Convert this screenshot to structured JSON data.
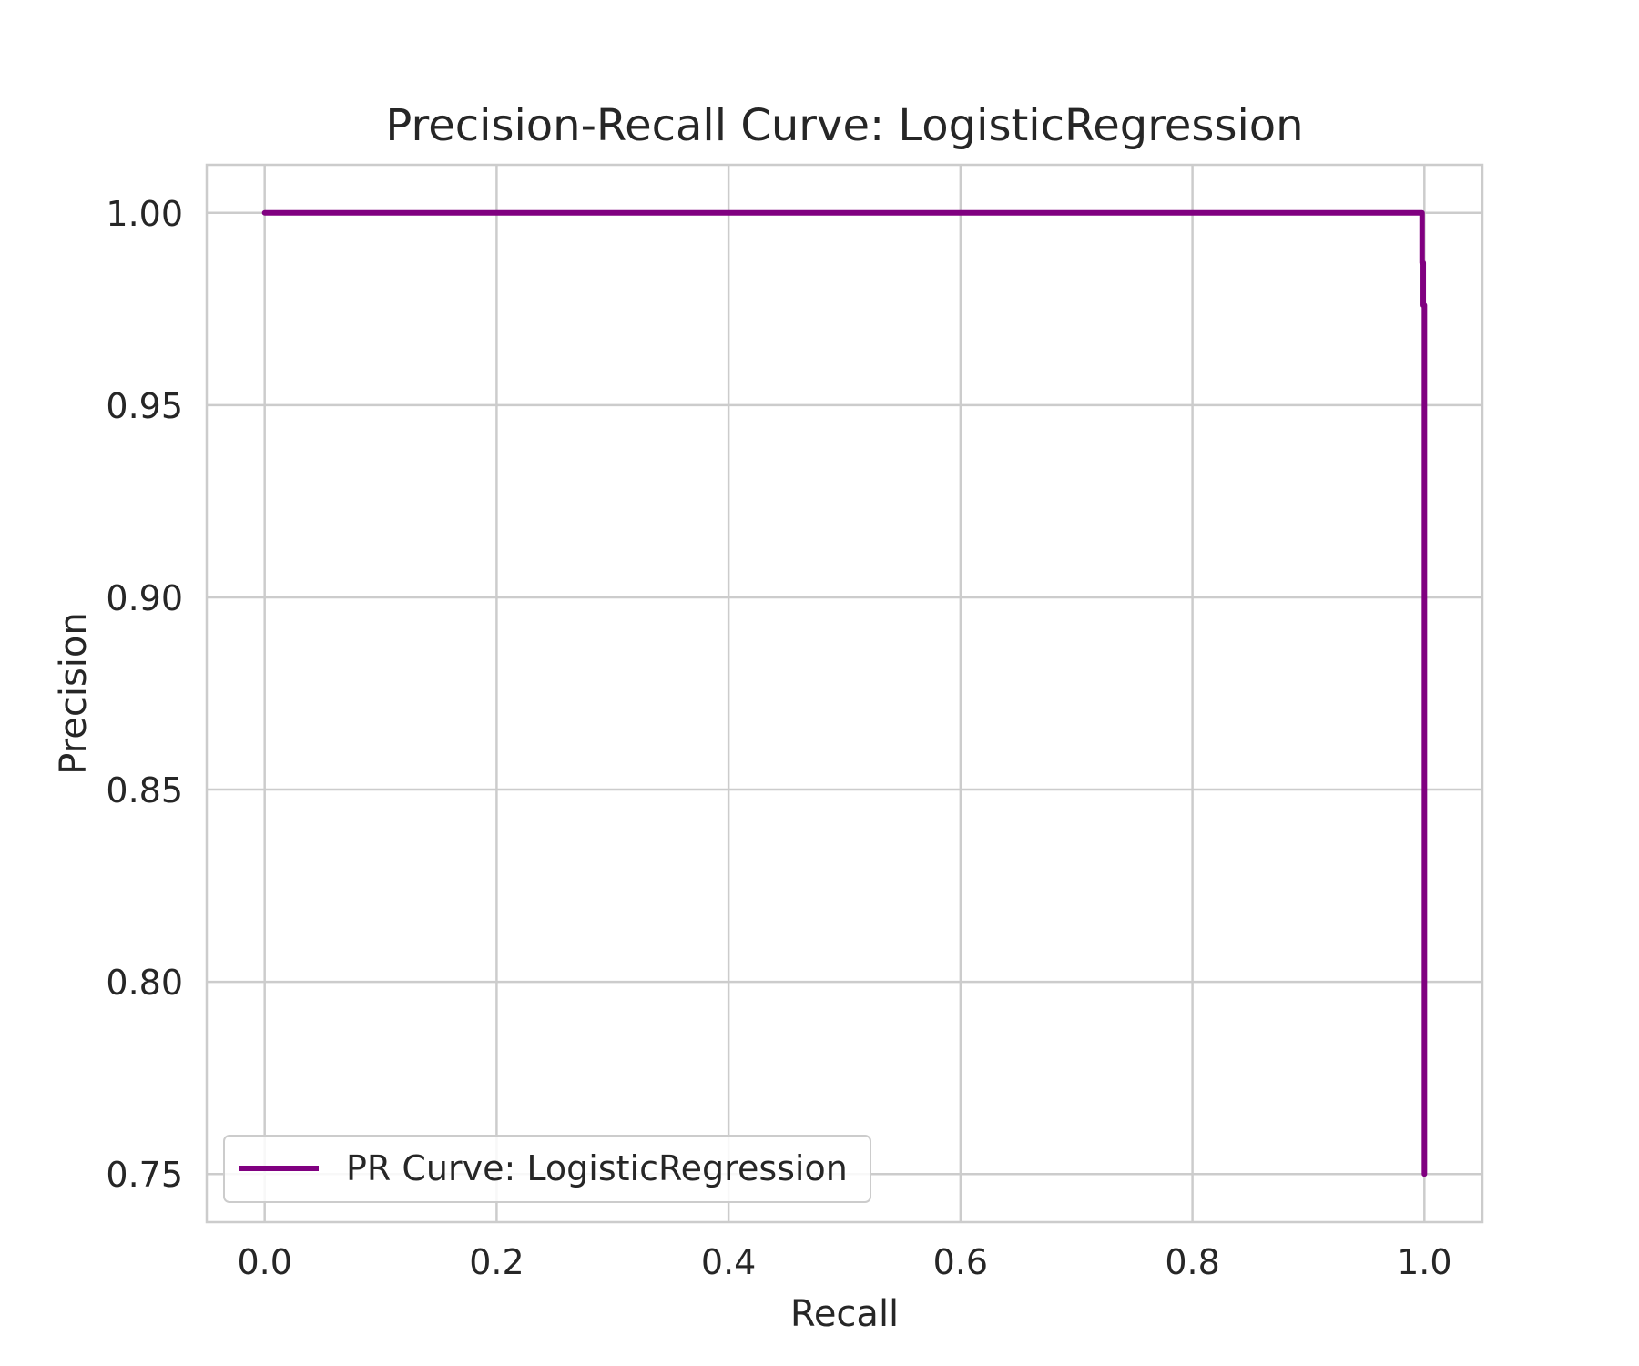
{
  "chart_data": {
    "type": "line",
    "title": "Precision-Recall Curve: LogisticRegression",
    "xlabel": "Recall",
    "ylabel": "Precision",
    "xlim": [
      -0.05,
      1.05
    ],
    "ylim": [
      0.7375,
      1.0125
    ],
    "xticks": [
      0.0,
      0.2,
      0.4,
      0.6,
      0.8,
      1.0
    ],
    "xtick_labels": [
      "0.0",
      "0.2",
      "0.4",
      "0.6",
      "0.8",
      "1.0"
    ],
    "yticks": [
      0.75,
      0.8,
      0.85,
      0.9,
      0.95,
      1.0
    ],
    "ytick_labels": [
      "0.75",
      "0.80",
      "0.85",
      "0.90",
      "0.95",
      "1.00"
    ],
    "grid": true,
    "legend_position": "lower-left",
    "series": [
      {
        "name": "PR Curve: LogisticRegression",
        "color": "#800080",
        "x": [
          0.0,
          0.998,
          0.998,
          0.999,
          0.999,
          1.0,
          1.0
        ],
        "y": [
          1.0,
          1.0,
          0.987,
          0.987,
          0.976,
          0.976,
          0.75
        ]
      }
    ]
  }
}
